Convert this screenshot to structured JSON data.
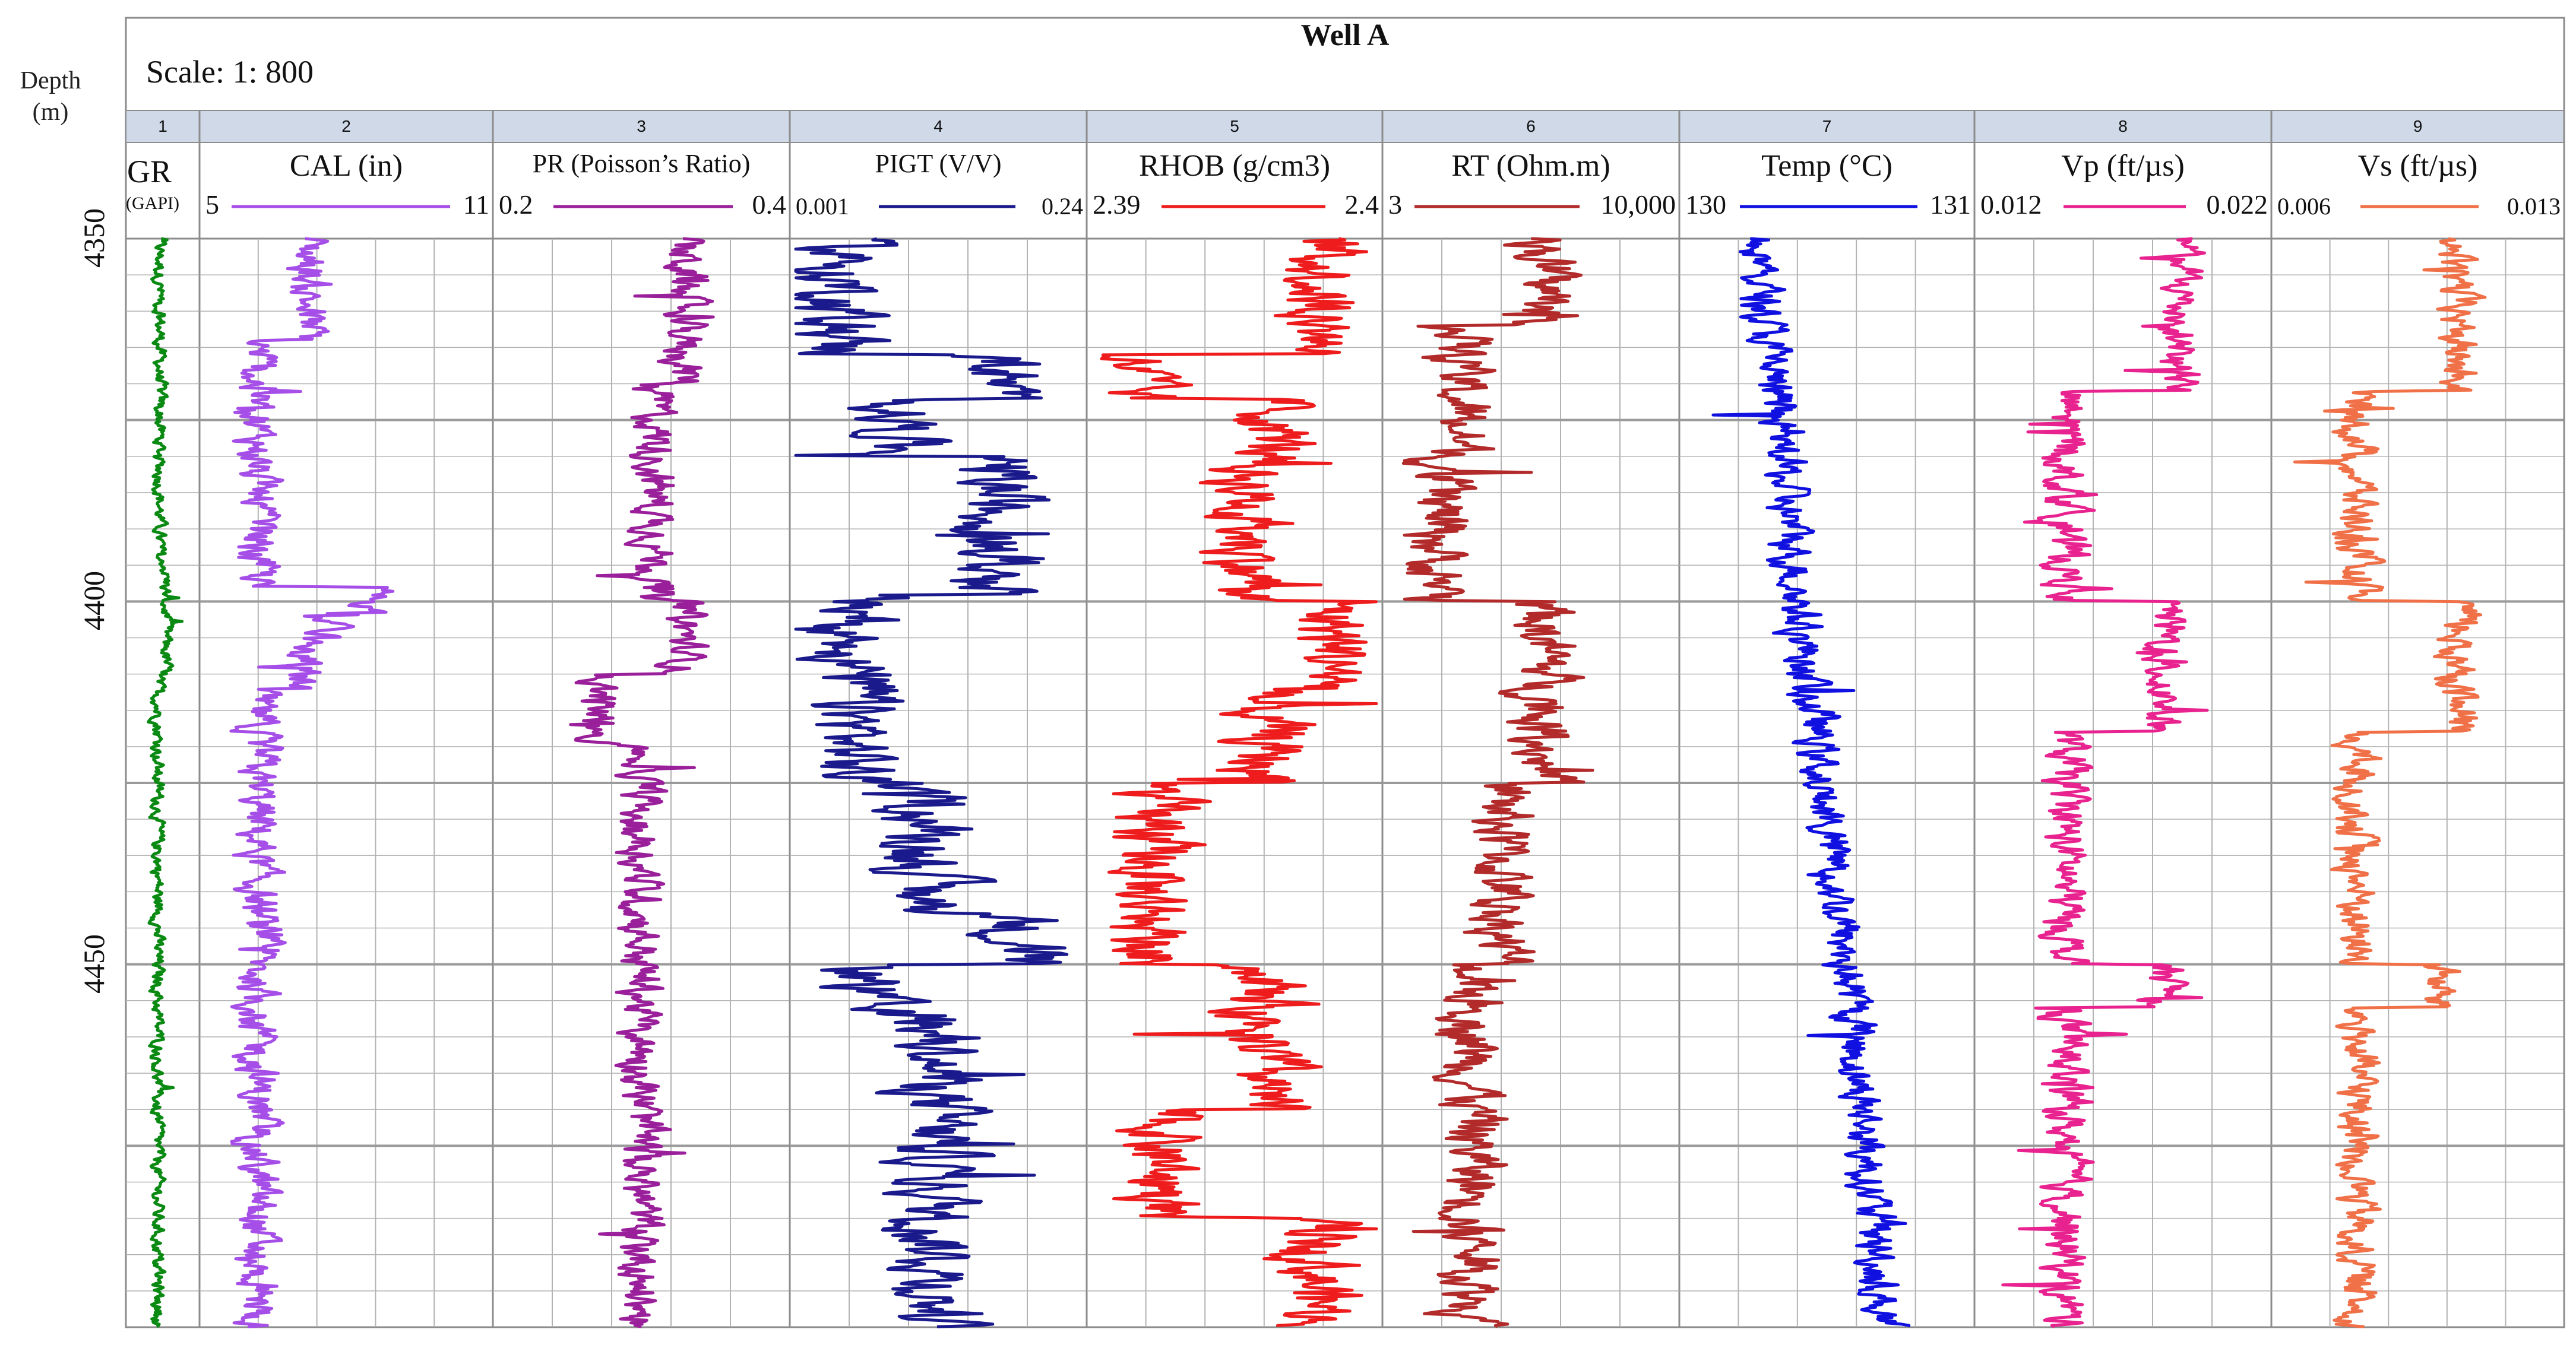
{
  "header": {
    "title": "Well A",
    "scale": "Scale: 1: 800",
    "depth_label_line1": "Depth",
    "depth_label_line2": "(m)"
  },
  "colors": {
    "grid": "#b3b3b3",
    "frame": "#8c8c8c",
    "numbar": "#cfd9e8"
  },
  "chart_data": {
    "type": "line",
    "depth_axis": {
      "label": "Depth (m)",
      "range": [
        4350,
        4500
      ],
      "ticks": [
        4350,
        4400,
        4450
      ],
      "reversed": true
    },
    "tracks": [
      {
        "number": "1",
        "name": "GR",
        "unit": "(GAPI)",
        "min": "",
        "max": "",
        "color": "#0a8a12",
        "key": "gr",
        "range": [
          0,
          1
        ],
        "base": 0.45,
        "amp": 0.08,
        "segments": [
          [
            4350,
            4395,
            0.45
          ],
          [
            4395,
            4410,
            0.55
          ],
          [
            4410,
            4500,
            0.42
          ]
        ]
      },
      {
        "number": "2",
        "name": "CAL (in)",
        "min": "5",
        "max": "11",
        "color": "#a64ee8",
        "key": "cal",
        "range": [
          5,
          11
        ],
        "amp": 0.35,
        "segments": [
          [
            4350,
            4364,
            7.2
          ],
          [
            4364,
            4398,
            6.1
          ],
          [
            4398,
            4402,
            8.6
          ],
          [
            4402,
            4405,
            7.6
          ],
          [
            4405,
            4412,
            7.0
          ],
          [
            4412,
            4500,
            6.1
          ]
        ]
      },
      {
        "number": "3",
        "name": "PR (Poisson’s Ratio)",
        "min": "0.2",
        "max": "0.4",
        "color": "#9a1f9a",
        "key": "pr",
        "range": [
          0.2,
          0.4
        ],
        "amp": 0.012,
        "segments": [
          [
            4350,
            4370,
            0.33
          ],
          [
            4370,
            4400,
            0.31
          ],
          [
            4400,
            4410,
            0.33
          ],
          [
            4410,
            4420,
            0.27
          ],
          [
            4420,
            4500,
            0.3
          ]
        ]
      },
      {
        "number": "4",
        "name": "PIGT (V/V)",
        "min": "0.001",
        "max": "0.24",
        "color": "#1a1a8c",
        "key": "pigt",
        "range": [
          0.001,
          0.24
        ],
        "amp": 0.03,
        "segments": [
          [
            4350,
            4366,
            0.04
          ],
          [
            4366,
            4372,
            0.17
          ],
          [
            4372,
            4380,
            0.09
          ],
          [
            4380,
            4399,
            0.17
          ],
          [
            4399,
            4425,
            0.05
          ],
          [
            4425,
            4443,
            0.11
          ],
          [
            4443,
            4450,
            0.19
          ],
          [
            4450,
            4457,
            0.06
          ],
          [
            4457,
            4500,
            0.12
          ]
        ]
      },
      {
        "number": "5",
        "name": "RHOB (g/cm3)",
        "min": "2.39",
        "max": "2.4",
        "color": "#ee1c1c",
        "key": "rhob",
        "range": [
          2.39,
          2.4
        ],
        "amp": 0.0012,
        "segments": [
          [
            4350,
            4366,
            2.3982
          ],
          [
            4366,
            4372,
            2.3915
          ],
          [
            4372,
            4380,
            2.3965
          ],
          [
            4380,
            4400,
            2.3955
          ],
          [
            4400,
            4412,
            2.3985
          ],
          [
            4412,
            4425,
            2.396
          ],
          [
            4425,
            4450,
            2.392
          ],
          [
            4450,
            4470,
            2.396
          ],
          [
            4470,
            4485,
            2.3925
          ],
          [
            4485,
            4500,
            2.398
          ]
        ]
      },
      {
        "number": "6",
        "name": "RT (Ohm.m)",
        "min": "3",
        "max": "10,000",
        "color": "#b22a2a",
        "key": "rt",
        "range": [
          0,
          1
        ],
        "amp": 0.09,
        "segments": [
          [
            4350,
            4362,
            0.55
          ],
          [
            4362,
            4380,
            0.25
          ],
          [
            4380,
            4400,
            0.18
          ],
          [
            4400,
            4425,
            0.55
          ],
          [
            4425,
            4450,
            0.4
          ],
          [
            4450,
            4500,
            0.3
          ]
        ]
      },
      {
        "number": "7",
        "name": "Temp (°C)",
        "min": "130",
        "max": "131",
        "color": "#1010e0",
        "key": "temp",
        "range": [
          130,
          131
        ],
        "amp": 0.06,
        "trend": [
          [
            4350,
            130.25
          ],
          [
            4400,
            130.4
          ],
          [
            4430,
            130.5
          ],
          [
            4460,
            130.6
          ],
          [
            4500,
            130.7
          ]
        ]
      },
      {
        "number": "8",
        "name": "Vp (ft/µs)",
        "min": "0.012",
        "max": "0.022",
        "color": "#e8228e",
        "key": "vp",
        "range": [
          0.012,
          0.022
        ],
        "amp": 0.0006,
        "segments": [
          [
            4350,
            4371,
            0.019
          ],
          [
            4371,
            4400,
            0.015
          ],
          [
            4400,
            4418,
            0.0185
          ],
          [
            4418,
            4450,
            0.015
          ],
          [
            4450,
            4456,
            0.0185
          ],
          [
            4456,
            4500,
            0.015
          ]
        ]
      },
      {
        "number": "9",
        "name": "Vs (ft/µs)",
        "min": "0.006",
        "max": "0.013",
        "color": "#f07048",
        "key": "vs",
        "range": [
          0.006,
          0.013
        ],
        "amp": 0.0004,
        "segments": [
          [
            4350,
            4371,
            0.0105
          ],
          [
            4371,
            4400,
            0.008
          ],
          [
            4400,
            4418,
            0.0105
          ],
          [
            4418,
            4450,
            0.008
          ],
          [
            4450,
            4456,
            0.01
          ],
          [
            4456,
            4500,
            0.008
          ]
        ]
      }
    ]
  }
}
